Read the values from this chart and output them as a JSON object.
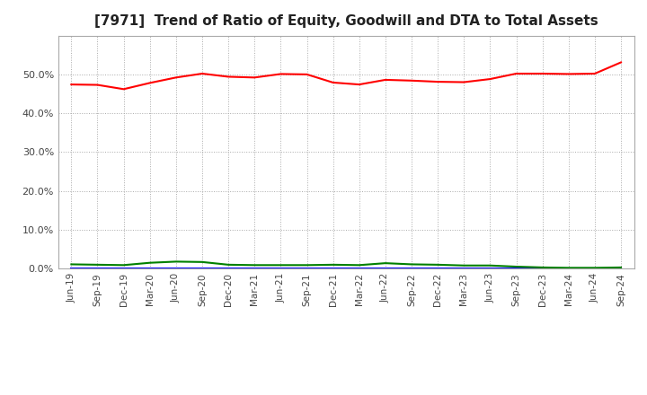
{
  "title": "[7971]  Trend of Ratio of Equity, Goodwill and DTA to Total Assets",
  "x_labels": [
    "Jun-19",
    "Sep-19",
    "Dec-19",
    "Mar-20",
    "Jun-20",
    "Sep-20",
    "Dec-20",
    "Mar-21",
    "Jun-21",
    "Sep-21",
    "Dec-21",
    "Mar-22",
    "Jun-22",
    "Sep-22",
    "Dec-22",
    "Mar-23",
    "Jun-23",
    "Sep-23",
    "Dec-23",
    "Mar-24",
    "Jun-24",
    "Sep-24"
  ],
  "equity": [
    0.474,
    0.473,
    0.462,
    0.478,
    0.492,
    0.502,
    0.494,
    0.492,
    0.501,
    0.5,
    0.479,
    0.474,
    0.486,
    0.484,
    0.481,
    0.48,
    0.488,
    0.502,
    0.502,
    0.501,
    0.502,
    0.531
  ],
  "goodwill": [
    0.0,
    0.0,
    0.0,
    0.0,
    0.0,
    0.0,
    0.0,
    0.0,
    0.0,
    0.0,
    0.0,
    0.0,
    0.0,
    0.0,
    0.0,
    0.0,
    0.0,
    0.0,
    0.0,
    0.0,
    0.0,
    0.0
  ],
  "dta": [
    0.011,
    0.01,
    0.009,
    0.015,
    0.018,
    0.017,
    0.01,
    0.009,
    0.009,
    0.009,
    0.01,
    0.009,
    0.014,
    0.011,
    0.01,
    0.008,
    0.008,
    0.005,
    0.003,
    0.002,
    0.002,
    0.003
  ],
  "equity_color": "#ff0000",
  "goodwill_color": "#0000ff",
  "dta_color": "#008000",
  "ylim": [
    0.0,
    0.6
  ],
  "yticks": [
    0.0,
    0.1,
    0.2,
    0.3,
    0.4,
    0.5
  ],
  "bg_color": "#ffffff",
  "grid_color": "#aaaaaa"
}
